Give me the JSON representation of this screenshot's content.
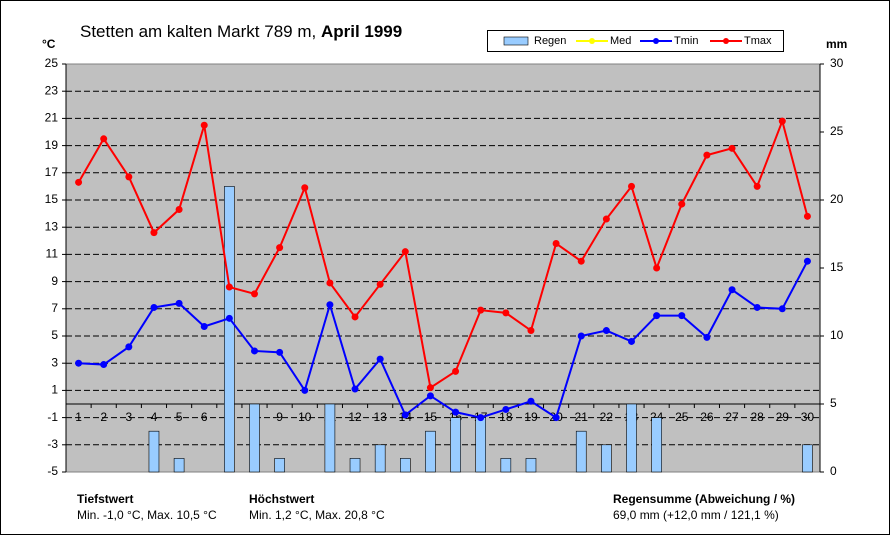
{
  "chart_data": {
    "type": "bar_line",
    "title": "Stetten am kalten Markt 789 m,",
    "title_bold": "April 1999",
    "y_label": "°C",
    "y2_label": "mm",
    "categories": [
      "1",
      "2",
      "3",
      "4",
      "5",
      "6",
      "7",
      "8",
      "9",
      "10",
      "11",
      "12",
      "13",
      "14",
      "15",
      "16",
      "17",
      "18",
      "19",
      "20",
      "21",
      "22",
      "23",
      "24",
      "25",
      "26",
      "27",
      "28",
      "29",
      "30"
    ],
    "ylim": [
      -5,
      25
    ],
    "yticks": [
      -5,
      -3,
      -1,
      1,
      3,
      5,
      7,
      9,
      11,
      13,
      15,
      17,
      19,
      21,
      23,
      25
    ],
    "y2lim": [
      0,
      30
    ],
    "y2ticks": [
      0,
      5,
      10,
      15,
      20,
      25,
      30
    ],
    "grid": true,
    "series": [
      {
        "name": "Regen",
        "type": "bar",
        "axis": "y2",
        "color": "#99ccff",
        "values": [
          0,
          0,
          0,
          3,
          1,
          0,
          21,
          5,
          1,
          0,
          5,
          1,
          2,
          1,
          3,
          4,
          4,
          1,
          1,
          0,
          3,
          2,
          5,
          4,
          0,
          0,
          0,
          0,
          0,
          2
        ]
      },
      {
        "name": "Med",
        "type": "line",
        "color": "#ffff00",
        "values": [
          null,
          null,
          null,
          null,
          null,
          null,
          null,
          null,
          null,
          null,
          null,
          null,
          null,
          null,
          null,
          null,
          null,
          null,
          null,
          null,
          null,
          null,
          null,
          null,
          null,
          null,
          null,
          null,
          null,
          null
        ]
      },
      {
        "name": "Tmin",
        "type": "line",
        "color": "#0000ff",
        "values": [
          3.0,
          2.9,
          4.2,
          7.1,
          7.4,
          5.7,
          6.3,
          3.9,
          3.8,
          1.0,
          7.3,
          1.1,
          3.3,
          -0.8,
          0.6,
          -0.6,
          -1.0,
          -0.4,
          0.2,
          -1.0,
          5.0,
          5.4,
          4.6,
          6.5,
          6.5,
          4.9,
          8.4,
          7.1,
          7.0,
          10.5
        ]
      },
      {
        "name": "Tmax",
        "type": "line",
        "color": "#ff0000",
        "values": [
          16.3,
          19.5,
          16.7,
          12.6,
          14.3,
          20.5,
          8.6,
          8.1,
          11.5,
          15.9,
          8.9,
          6.4,
          8.8,
          11.2,
          1.2,
          2.4,
          6.9,
          6.7,
          5.4,
          11.8,
          10.5,
          13.6,
          16.0,
          10.0,
          14.7,
          18.3,
          18.8,
          16.0,
          20.8,
          13.8
        ]
      }
    ],
    "footer": [
      {
        "heading": "Tiefstwert",
        "text": "Min. -1,0 °C, Max. 10,5 °C"
      },
      {
        "heading": "Höchstwert",
        "text": "Min. 1,2 °C, Max. 20,8 °C"
      },
      {
        "heading": "Regensumme (Abweichung / %)",
        "text": "69,0 mm (+12,0 mm / 121,1 %)"
      }
    ]
  }
}
